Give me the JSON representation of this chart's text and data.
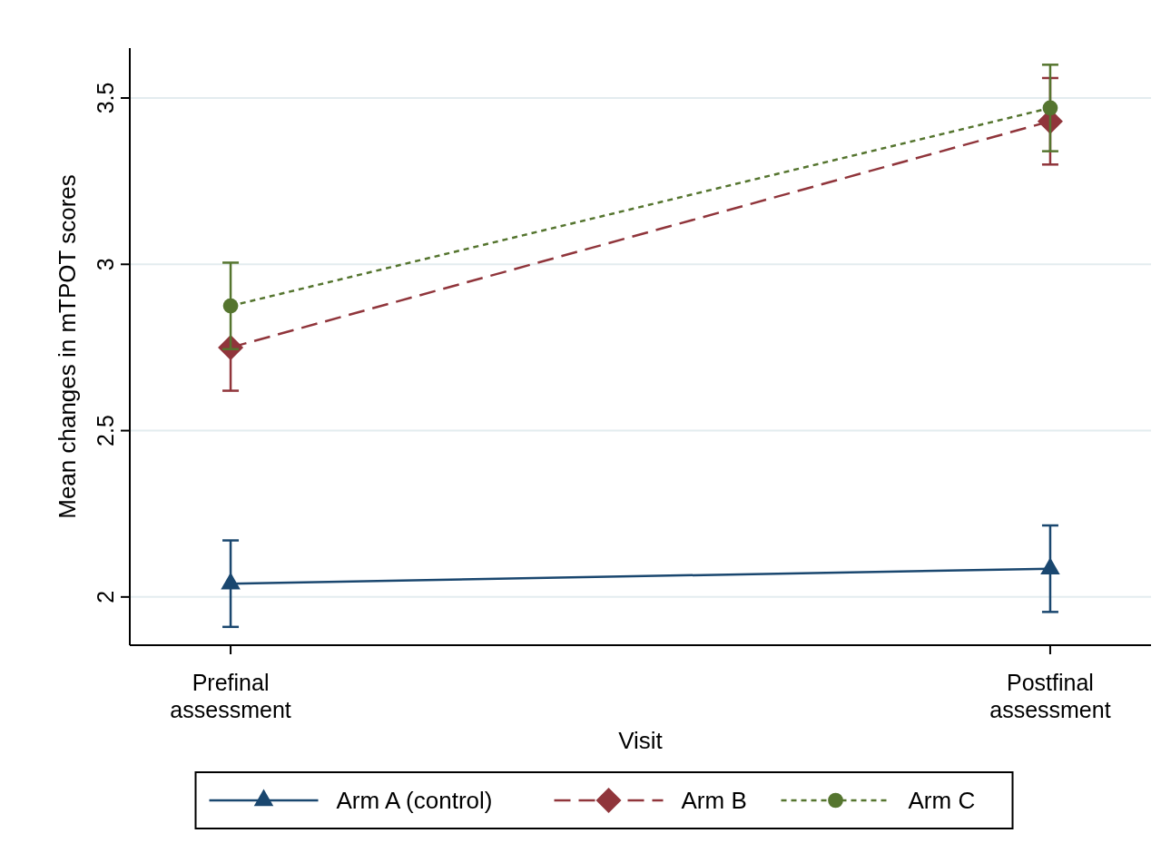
{
  "chart_data": {
    "type": "line",
    "xlabel": "Visit",
    "ylabel": "Mean changes in mTPOT scores",
    "categories": [
      "Prefinal assessment",
      "Postfinal assessment"
    ],
    "series": [
      {
        "name": "Arm A (control)",
        "color": "#1a476f",
        "values": [
          2.04,
          2.085
        ],
        "errors": [
          [
            1.91,
            2.17
          ],
          [
            1.955,
            2.215
          ]
        ],
        "marker": "triangle",
        "line_style": "solid"
      },
      {
        "name": "Arm B",
        "color": "#90353b",
        "values": [
          2.75,
          3.43
        ],
        "errors": [
          [
            2.62,
            2.75
          ],
          [
            3.3,
            3.56
          ]
        ],
        "marker": "diamond",
        "line_style": "dashed"
      },
      {
        "name": "Arm C",
        "color": "#55752f",
        "values": [
          2.875,
          3.47
        ],
        "errors": [
          [
            2.745,
            3.005
          ],
          [
            3.34,
            3.6
          ]
        ],
        "marker": "circle",
        "line_style": "dotted"
      }
    ],
    "ylim": [
      1.855,
      3.65
    ],
    "yticks": [
      2,
      2.5,
      3,
      3.5
    ],
    "grid": "y",
    "legend": "bottom"
  }
}
